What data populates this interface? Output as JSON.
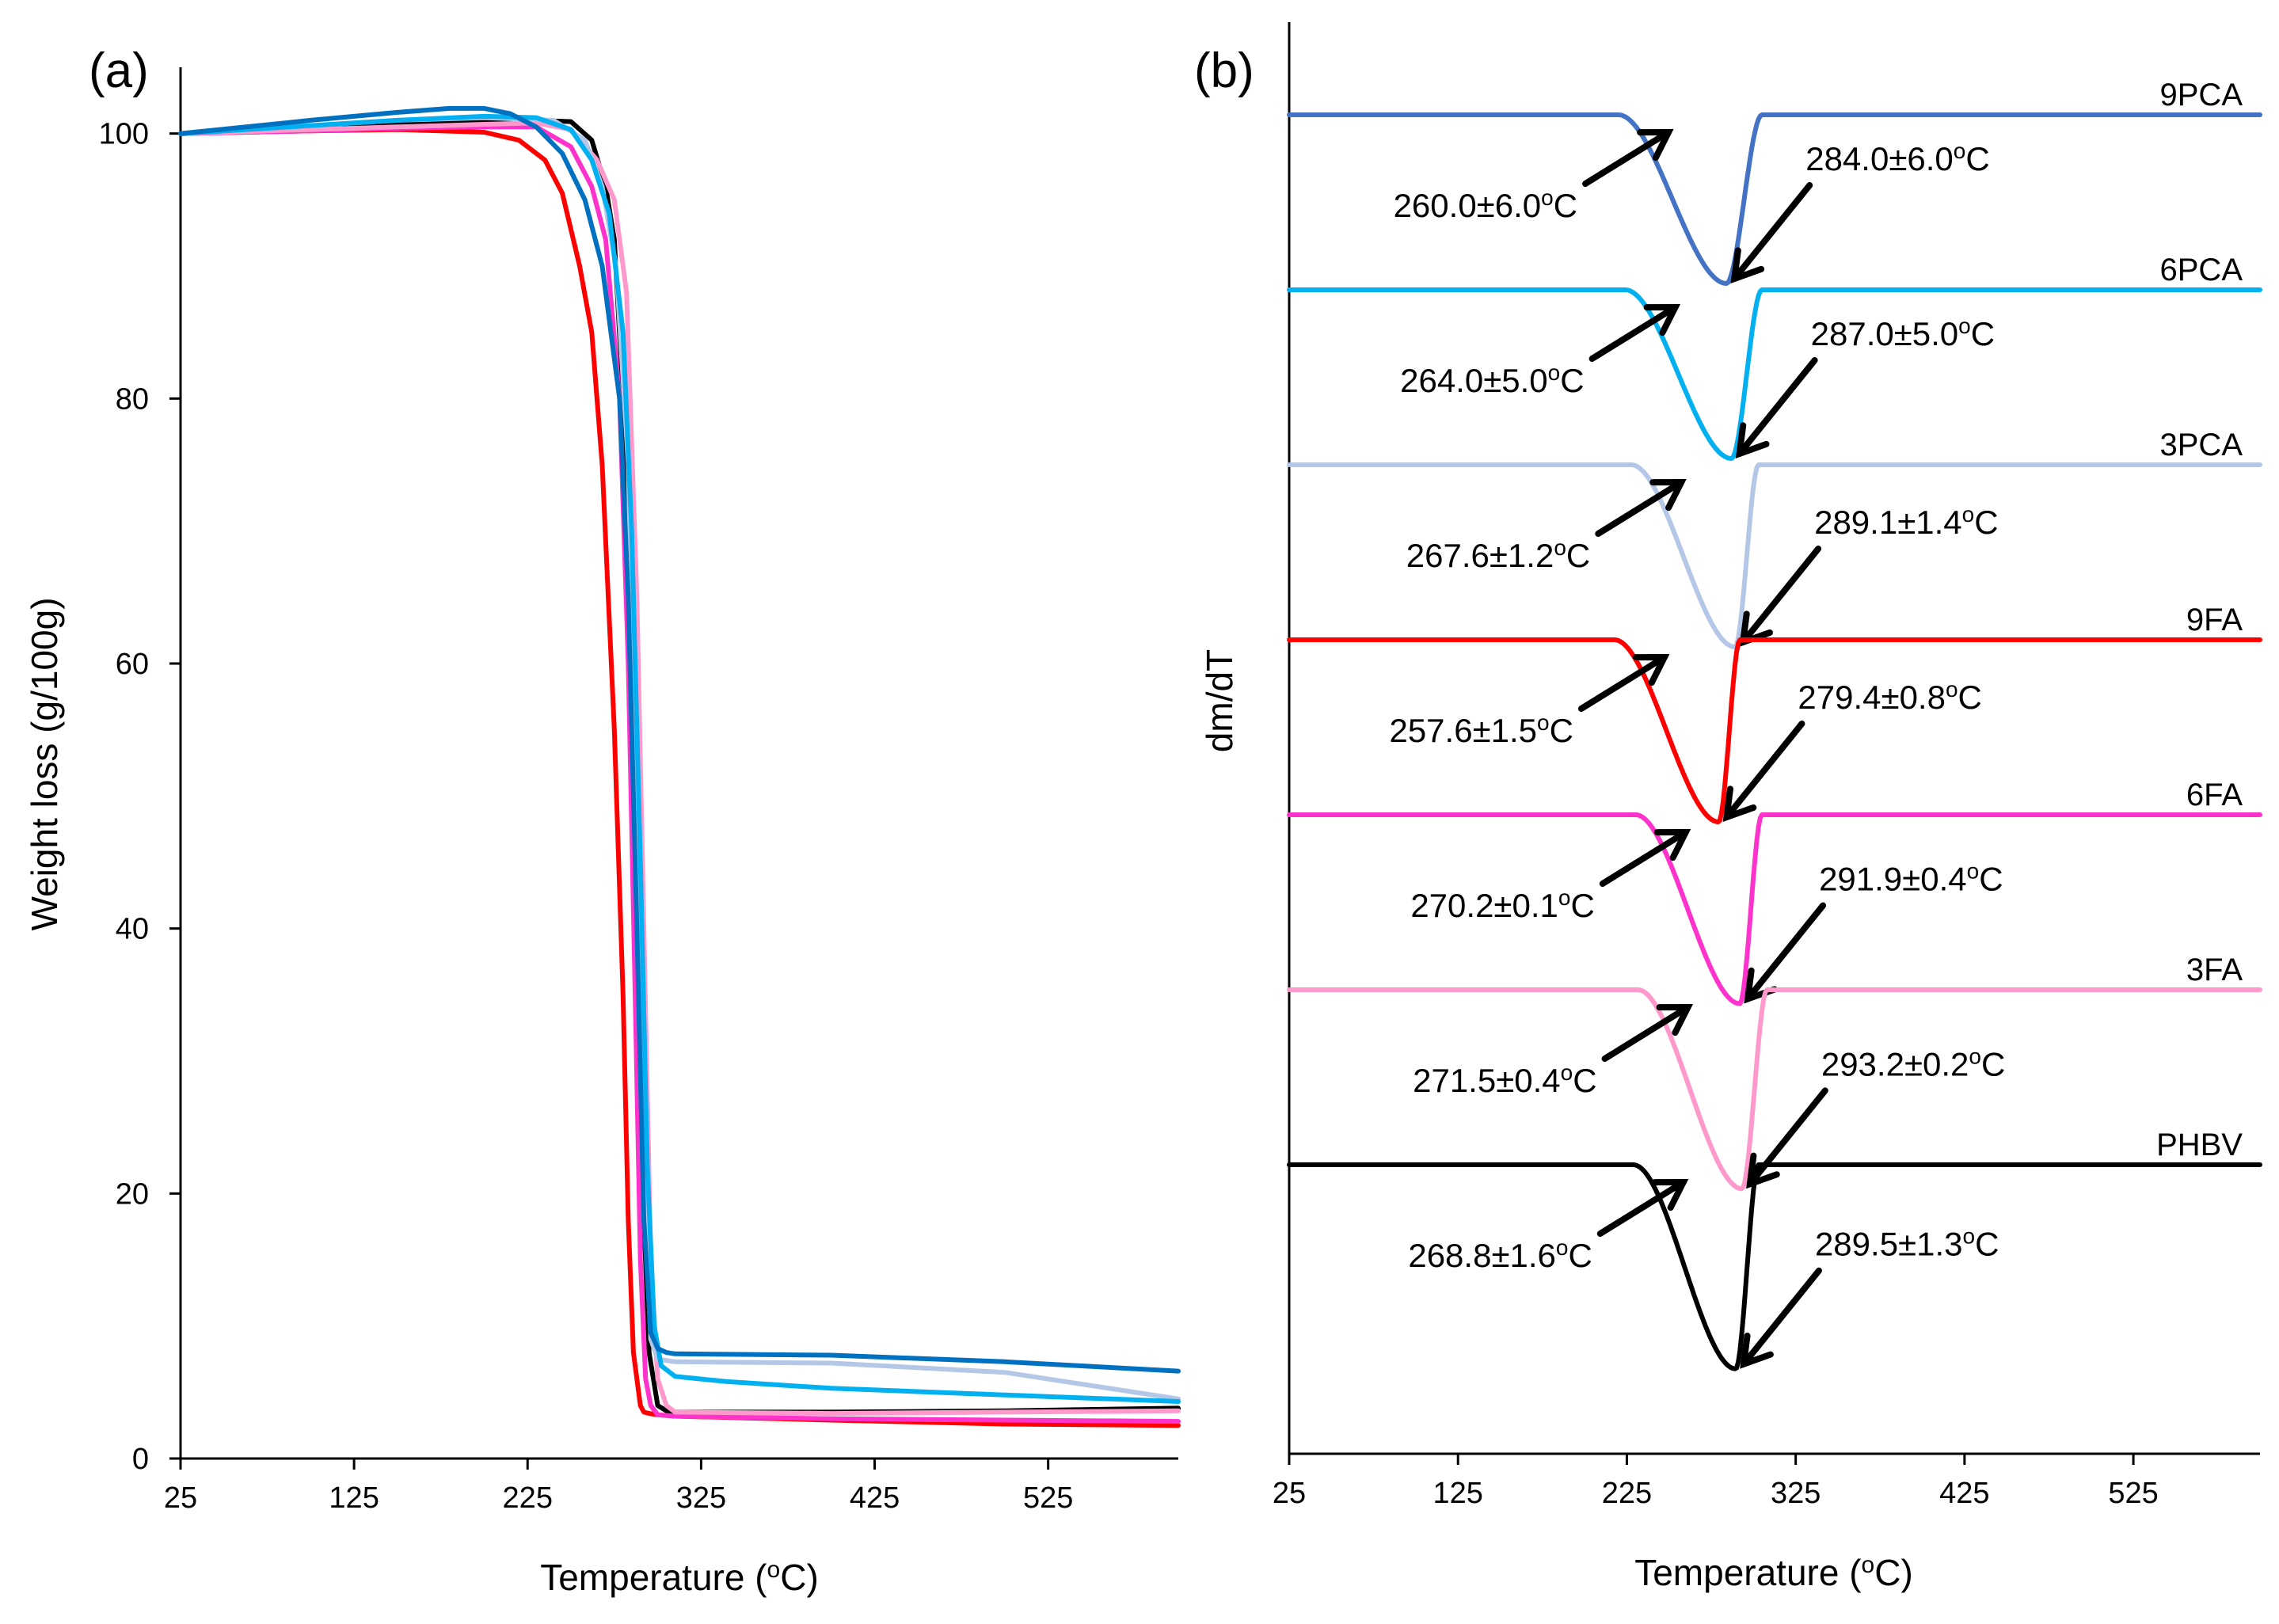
{
  "chart_data": [
    {
      "type": "line",
      "panel": "(a)",
      "xlabel_main": "Temperature (",
      "xlabel_sup": "o",
      "xlabel_tail": "C)",
      "ylabel": "Weight loss (g/100g)",
      "xlim": [
        25,
        600
      ],
      "ylim": [
        0,
        105
      ],
      "xticks": [
        "25",
        "125",
        "225",
        "325",
        "425",
        "525"
      ],
      "yticks": [
        "0",
        "20",
        "40",
        "60",
        "80",
        "100"
      ],
      "series": [
        {
          "name": "PHBV",
          "color": "#000000",
          "x": [
            25,
            100,
            150,
            200,
            230,
            250,
            262,
            270,
            275,
            280,
            285,
            290,
            295,
            300,
            305,
            310,
            400,
            500,
            600
          ],
          "y": [
            100,
            100.4,
            100.7,
            100.9,
            101,
            100.9,
            99.5,
            96,
            92,
            80,
            55,
            25,
            8,
            4,
            3.6,
            3.5,
            3.5,
            3.6,
            3.8
          ]
        },
        {
          "name": "9FA",
          "color": "#ff0000",
          "x": [
            25,
            100,
            150,
            200,
            220,
            235,
            245,
            255,
            262,
            268,
            275,
            280,
            283,
            286,
            290,
            292,
            295,
            300,
            310,
            400,
            500,
            600
          ],
          "y": [
            100,
            100.2,
            100.3,
            100.1,
            99.5,
            98,
            95.5,
            90,
            85,
            75,
            55,
            35,
            18,
            8,
            4,
            3.5,
            3.4,
            3.3,
            3.2,
            2.9,
            2.6,
            2.5
          ]
        },
        {
          "name": "6FA",
          "color": "#ff33cc",
          "x": [
            25,
            100,
            150,
            200,
            230,
            250,
            262,
            270,
            278,
            283,
            287,
            290,
            293,
            296,
            300,
            310,
            400,
            500,
            600
          ],
          "y": [
            100,
            100.2,
            100.4,
            100.5,
            100.5,
            99,
            96,
            92,
            80,
            60,
            35,
            15,
            6,
            4,
            3.3,
            3.2,
            3.0,
            2.9,
            2.8
          ]
        },
        {
          "name": "3FA",
          "color": "#ff99cc",
          "x": [
            25,
            100,
            150,
            200,
            230,
            250,
            265,
            275,
            282,
            288,
            292,
            296,
            300,
            305,
            310,
            400,
            500,
            600
          ],
          "y": [
            100,
            100.3,
            100.5,
            100.7,
            100.8,
            100.3,
            98,
            95,
            88,
            65,
            40,
            15,
            6,
            4,
            3.5,
            3.4,
            3.5,
            3.6
          ]
        },
        {
          "name": "3PCA",
          "color": "#b4c7e7",
          "x": [
            25,
            100,
            150,
            200,
            240,
            258,
            268,
            276,
            283,
            288,
            292,
            296,
            300,
            310,
            400,
            500,
            600
          ],
          "y": [
            100,
            100.6,
            101,
            101.2,
            101,
            99.5,
            96,
            90,
            75,
            45,
            20,
            9,
            7.5,
            7.3,
            7.2,
            6.5,
            4.5
          ]
        },
        {
          "name": "6PCA",
          "color": "#00b0f0",
          "x": [
            25,
            100,
            150,
            200,
            230,
            250,
            262,
            272,
            280,
            285,
            290,
            294,
            298,
            302,
            310,
            340,
            400,
            500,
            600
          ],
          "y": [
            100,
            100.6,
            101,
            101.3,
            101.2,
            100.3,
            98,
            94,
            85,
            70,
            45,
            22,
            10,
            7,
            6.2,
            5.8,
            5.3,
            4.8,
            4.3
          ]
        },
        {
          "name": "9PCA",
          "color": "#0070c0",
          "x": [
            25,
            100,
            150,
            180,
            200,
            215,
            230,
            245,
            258,
            268,
            278,
            283,
            288,
            292,
            296,
            300,
            305,
            310,
            400,
            500,
            600
          ],
          "y": [
            100,
            101,
            101.6,
            101.9,
            101.9,
            101.5,
            100.5,
            98.5,
            95,
            90,
            80,
            65,
            40,
            18,
            9.5,
            8.3,
            8,
            7.9,
            7.8,
            7.3,
            6.6
          ]
        }
      ]
    },
    {
      "type": "line",
      "panel": "(b)",
      "xlabel_main": "Temperature (",
      "xlabel_sup": "o",
      "xlabel_tail": "C)",
      "ylabel": "dm/dT",
      "xlim": [
        25,
        600
      ],
      "xticks": [
        "25",
        "125",
        "225",
        "325",
        "425",
        "525"
      ],
      "series": [
        {
          "name": "9PCA",
          "color": "#4472c4",
          "onset": 260.0,
          "peak": 284.0,
          "endset": 305,
          "depth": 1.0,
          "onset_label": "260.0±6.0",
          "peak_label": "284.0±6.0"
        },
        {
          "name": "6PCA",
          "color": "#00b0f0",
          "onset": 264.0,
          "peak": 287.0,
          "endset": 305,
          "depth": 1.0,
          "onset_label": "264.0±5.0",
          "peak_label": "287.0±5.0"
        },
        {
          "name": "3PCA",
          "color": "#b4c7e7",
          "onset": 267.6,
          "peak": 289.1,
          "endset": 303,
          "depth": 1.08,
          "onset_label": "267.6±1.2",
          "peak_label": "289.1±1.4"
        },
        {
          "name": "9FA",
          "color": "#ff0000",
          "onset": 257.6,
          "peak": 279.4,
          "endset": 292,
          "depth": 1.08,
          "onset_label": "257.6±1.5",
          "peak_label": "279.4±0.8"
        },
        {
          "name": "6FA",
          "color": "#ff33cc",
          "onset": 270.2,
          "peak": 291.9,
          "endset": 305,
          "depth": 1.12,
          "onset_label": "270.2±0.1",
          "peak_label": "291.9±0.4"
        },
        {
          "name": "3FA",
          "color": "#ff99cc",
          "onset": 271.5,
          "peak": 293.2,
          "endset": 308,
          "depth": 1.18,
          "onset_label": "271.5±0.4",
          "peak_label": "293.2±0.2"
        },
        {
          "name": "PHBV",
          "color": "#000000",
          "onset": 268.8,
          "peak": 289.5,
          "endset": 303,
          "depth": 1.21,
          "onset_label": "268.8±1.6",
          "peak_label": "289.5±1.3"
        }
      ],
      "deg_sup": "o",
      "deg_unit": "C"
    }
  ]
}
